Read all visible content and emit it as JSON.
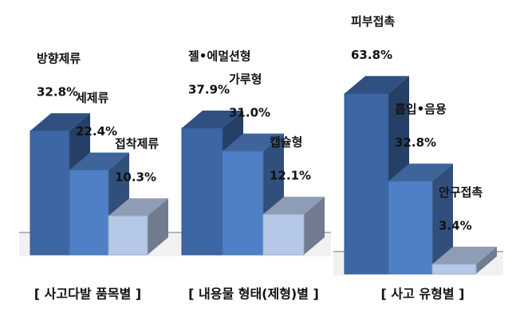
{
  "chart_data": [
    {
      "type": "bar3d",
      "title": "[ 사고다발 품목별 ]",
      "categories": [
        "방향제류",
        "세제류",
        "접착제류"
      ],
      "values": [
        32.8,
        22.4,
        10.3
      ],
      "value_labels": [
        "32.8%",
        "22.4%",
        "10.3%"
      ],
      "colors": [
        "#3c66a4",
        "#4f80c6",
        "#b6c8e8"
      ]
    },
    {
      "type": "bar3d",
      "title": "[ 내용물 형태(제형)별 ]",
      "categories": [
        "젤•에멀션형",
        "가루형",
        "캡슐형"
      ],
      "values": [
        37.9,
        31.0,
        12.1
      ],
      "value_labels": [
        "37.9%",
        "31.0%",
        "12.1%"
      ],
      "colors": [
        "#3c66a4",
        "#4f80c6",
        "#b6c8e8"
      ]
    },
    {
      "type": "bar3d",
      "title": "[ 사고 유형별 ]",
      "categories": [
        "피부접촉",
        "흡입•음용",
        "안구접촉"
      ],
      "values": [
        63.8,
        32.8,
        3.4
      ],
      "value_labels": [
        "63.8%",
        "32.8%",
        "3.4%"
      ],
      "colors": [
        "#3c66a4",
        "#4f80c6",
        "#b6c8e8"
      ]
    }
  ]
}
